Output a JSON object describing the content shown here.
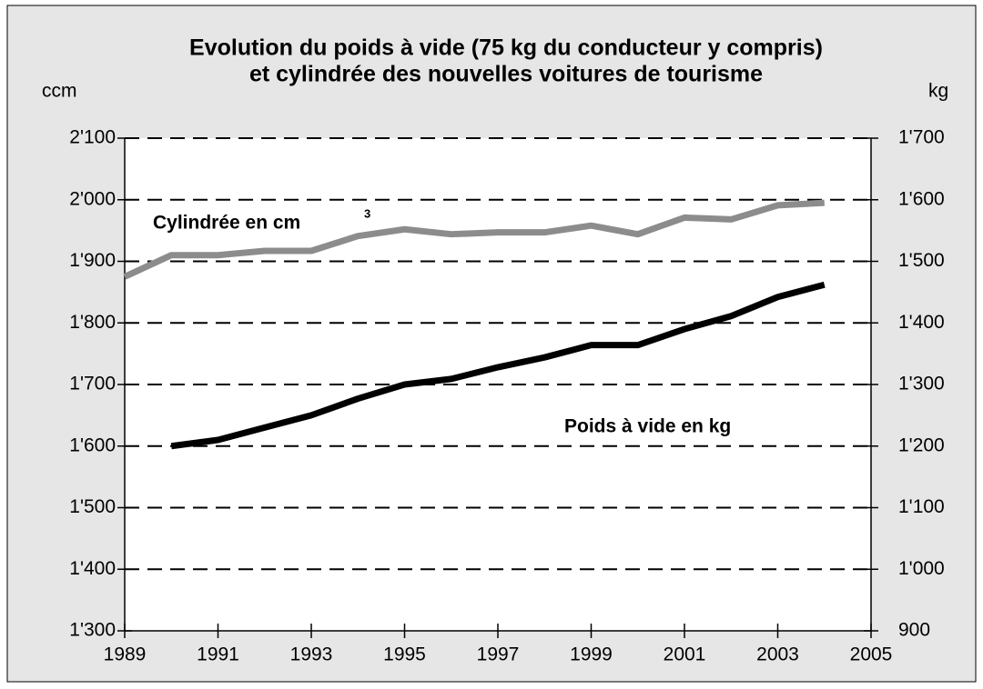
{
  "chart_data": {
    "type": "line",
    "title": [
      "Evolution du poids à vide (75 kg du conducteur y compris)",
      "et cylindrée des nouvelles voitures de tourisme"
    ],
    "y_label": "ccm",
    "y2_label": "kg",
    "xlim": [
      1989,
      2005
    ],
    "xticks": [
      1989,
      1991,
      1993,
      1995,
      1997,
      1999,
      2001,
      2003,
      2005
    ],
    "ylim": [
      1300,
      2100
    ],
    "yticks": [
      {
        "value": 1300,
        "label": "1'300"
      },
      {
        "value": 1400,
        "label": "1'400"
      },
      {
        "value": 1500,
        "label": "1'500"
      },
      {
        "value": 1600,
        "label": "1'600"
      },
      {
        "value": 1700,
        "label": "1'700"
      },
      {
        "value": 1800,
        "label": "1'800"
      },
      {
        "value": 1900,
        "label": "1'900"
      },
      {
        "value": 2000,
        "label": "2'000"
      },
      {
        "value": 2100,
        "label": "2'100"
      }
    ],
    "y2lim": [
      900,
      1700
    ],
    "y2ticks": [
      900,
      {
        "value": 1000,
        "label": "1'000"
      },
      {
        "value": 1100,
        "label": "1'100"
      },
      {
        "value": 1200,
        "label": "1'200"
      },
      {
        "value": 1300,
        "label": "1'300"
      },
      {
        "value": 1400,
        "label": "1'400"
      },
      {
        "value": 1500,
        "label": "1'500"
      },
      {
        "value": 1600,
        "label": "1'600"
      },
      {
        "value": 1700,
        "label": "1'700"
      }
    ],
    "grid": true,
    "series": [
      {
        "name": "Cylindrée en cm",
        "name_sup": "3",
        "color": "#8c8c8c",
        "x": [
          1989,
          1990,
          1991,
          1992,
          1993,
          1994,
          1995,
          1996,
          1997,
          1998,
          1999,
          2000,
          2001,
          2002,
          2003,
          2004
        ],
        "values": [
          1875,
          1910,
          1910,
          1917,
          1917,
          1941,
          1952,
          1944,
          1947,
          1947,
          1958,
          1944,
          1971,
          1968,
          1991,
          1995
        ]
      },
      {
        "name": "Poids à vide en kg",
        "color": "#000000",
        "axis": "y2",
        "x": [
          1990,
          1991,
          1992,
          1993,
          1994,
          1995,
          1996,
          1997,
          1998,
          1999,
          2000,
          2001,
          2002,
          2003,
          2004
        ],
        "values": [
          1200,
          1210,
          1230,
          1250,
          1277,
          1300,
          1309,
          1328,
          1344,
          1364,
          1364,
          1390,
          1411,
          1442,
          1462
        ]
      }
    ]
  }
}
